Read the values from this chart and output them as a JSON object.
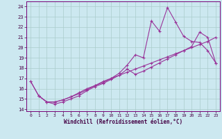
{
  "xlabel": "Windchill (Refroidissement éolien,°C)",
  "bg_color": "#cce8f0",
  "grid_color": "#aacccc",
  "line_color": "#993399",
  "xlim": [
    -0.5,
    23.5
  ],
  "ylim": [
    13.8,
    24.5
  ],
  "yticks": [
    14,
    15,
    16,
    17,
    18,
    19,
    20,
    21,
    22,
    23,
    24
  ],
  "xticks": [
    0,
    1,
    2,
    3,
    4,
    5,
    6,
    7,
    8,
    9,
    10,
    11,
    12,
    13,
    14,
    15,
    16,
    17,
    18,
    19,
    20,
    21,
    22,
    23
  ],
  "line1_x": [
    0,
    1,
    2,
    3,
    4,
    5,
    6,
    7,
    8,
    9,
    10,
    11,
    12,
    13,
    14,
    15,
    16,
    17,
    18,
    19,
    20,
    21,
    22,
    23
  ],
  "line1_y": [
    16.7,
    15.3,
    14.7,
    14.7,
    14.9,
    15.2,
    15.5,
    15.9,
    16.3,
    16.6,
    17.0,
    17.3,
    17.6,
    17.9,
    18.2,
    18.5,
    18.8,
    19.1,
    19.4,
    19.7,
    20.0,
    20.3,
    20.6,
    21.0
  ],
  "line2_x": [
    0,
    1,
    2,
    3,
    4,
    5,
    6,
    7,
    8,
    9,
    10,
    11,
    12,
    13,
    14,
    15,
    16,
    17,
    18,
    19,
    20,
    21,
    22,
    23
  ],
  "line2_y": [
    16.7,
    15.3,
    14.7,
    14.7,
    14.9,
    15.2,
    15.6,
    16.0,
    16.3,
    16.7,
    17.0,
    17.5,
    18.3,
    19.3,
    19.0,
    22.6,
    21.6,
    23.9,
    22.5,
    21.1,
    20.6,
    20.5,
    19.7,
    18.5
  ],
  "line3_x": [
    1,
    2,
    3,
    4,
    5,
    6,
    7,
    8,
    9,
    10,
    11,
    12,
    13,
    14,
    15,
    16,
    17,
    18,
    19,
    20,
    21,
    22,
    23
  ],
  "line3_y": [
    15.3,
    14.7,
    14.5,
    14.7,
    15.0,
    15.3,
    15.8,
    16.2,
    16.5,
    16.9,
    17.3,
    17.9,
    17.4,
    17.7,
    18.1,
    18.5,
    18.9,
    19.3,
    19.7,
    20.1,
    21.5,
    21.0,
    18.5
  ],
  "marker": "+"
}
